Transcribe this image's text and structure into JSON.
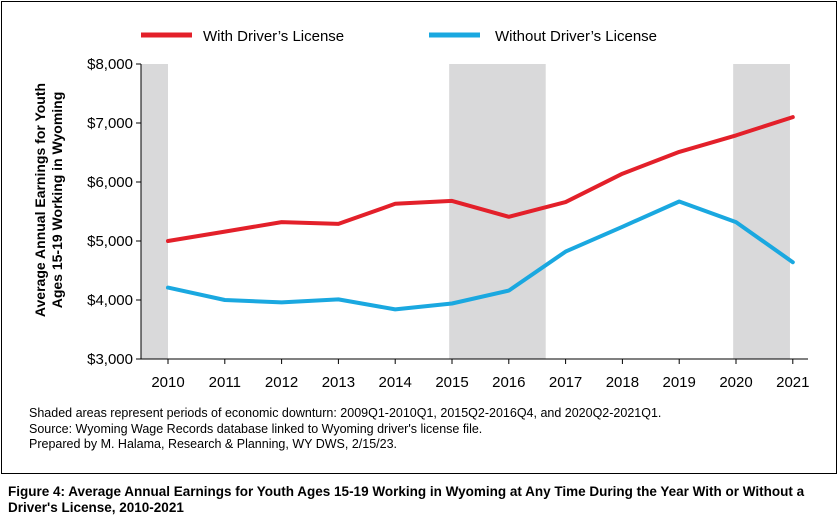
{
  "chart_data": {
    "type": "line",
    "title": "",
    "ylabel_lines": [
      "Average Annual Earnings for Youth",
      "Ages 15-19 Working in Wyoming"
    ],
    "xlabel": "",
    "x": [
      "2010",
      "2011",
      "2012",
      "2013",
      "2014",
      "2015",
      "2016",
      "2017",
      "2018",
      "2019",
      "2020",
      "2021"
    ],
    "ylim": [
      3000,
      8000
    ],
    "yticks": [
      3000,
      4000,
      5000,
      6000,
      7000,
      8000
    ],
    "ytick_labels": [
      "$3,000",
      "$4,000",
      "$5,000",
      "$6,000",
      "$7,000",
      "$8,000"
    ],
    "series": [
      {
        "name": "With Driver’s License",
        "color": "#e3202a",
        "values": [
          5000,
          5160,
          5320,
          5290,
          5630,
          5680,
          5410,
          5660,
          6140,
          6510,
          6790,
          7100
        ]
      },
      {
        "name": "Without Driver’s License",
        "color": "#1aa8e0",
        "values": [
          4210,
          4000,
          3960,
          4010,
          3840,
          3940,
          4160,
          4820,
          5240,
          5670,
          5320,
          4640
        ]
      }
    ],
    "shaded_periods": [
      {
        "label": "2009Q1-2010Q1",
        "start": 9.5,
        "end": 10.0
      },
      {
        "label": "2015Q2-2016Q4",
        "start": 14.95,
        "end": 16.65
      },
      {
        "label": "2020Q2-2021Q1",
        "start": 19.95,
        "end": 20.95
      }
    ],
    "shade_color": "#d9d9da",
    "grid": false,
    "legend_position": "top"
  },
  "notes": {
    "shading": "Shaded areas represent periods of economic downturn: 2009Q1-2010Q1, 2015Q2-2016Q4, and 2020Q2-2021Q1.",
    "source": "Source: Wyoming Wage Records database linked to Wyoming driver's license file.",
    "prepared": "Prepared by M. Halama, Research & Planning, WY DWS, 2/15/23."
  },
  "caption": "Figure 4: Average Annual Earnings for Youth Ages 15-19 Working in Wyoming at Any Time During the Year With or Without a Driver's License, 2010-2021"
}
